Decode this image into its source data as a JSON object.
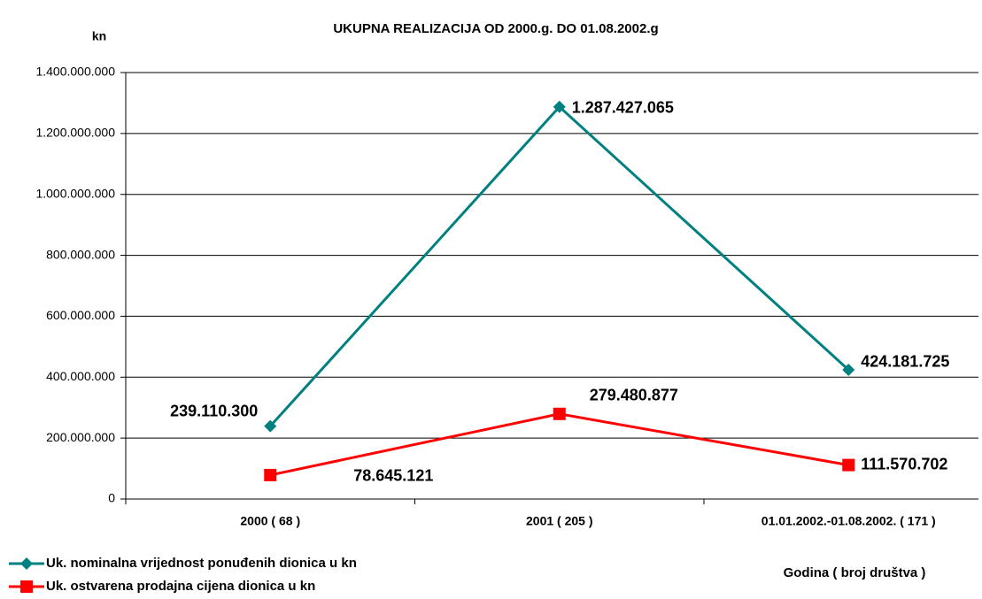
{
  "chart_data": {
    "type": "line",
    "title": "UKUPNA REALIZACIJA  OD 2000.g. DO 01.08.2002.g",
    "y_label": "kn",
    "x_label": "Godina ( broj društva )",
    "categories": [
      "2000 ( 68 )",
      "2001 ( 205 )",
      "01.01.2002.-01.08.2002. ( 171 )"
    ],
    "series": [
      {
        "name": "Uk. nominalna vrijednost ponuđenih dionica u kn",
        "color": "#008080",
        "marker": "diamond",
        "values": [
          239110300,
          1287427065,
          424181725
        ],
        "value_labels": [
          "239.110.300",
          "1.287.427.065",
          "424.181.725"
        ]
      },
      {
        "name": "Uk. ostvarena prodajna cijena dionica u kn",
        "color": "#ff0000",
        "marker": "square",
        "values": [
          78645121,
          279480877,
          111570702
        ],
        "value_labels": [
          "78.645.121",
          "279.480.877",
          "111.570.702"
        ]
      }
    ],
    "ylim": [
      0,
      1400000000
    ],
    "yticks": [
      0,
      {
        "value": 200000000,
        "label": "200.000.000"
      },
      {
        "value": 400000000,
        "label": "400.000.000"
      },
      {
        "value": 600000000,
        "label": "600.000.000"
      },
      {
        "value": 800000000,
        "label": "800.000.000"
      },
      {
        "value": 1000000000,
        "label": "1.000.000.000"
      },
      {
        "value": 1200000000,
        "label": "1.200.000.000"
      },
      {
        "value": 1400000000,
        "label": "1.400.000.000"
      }
    ],
    "grid": true,
    "legend": "bottom-left"
  }
}
